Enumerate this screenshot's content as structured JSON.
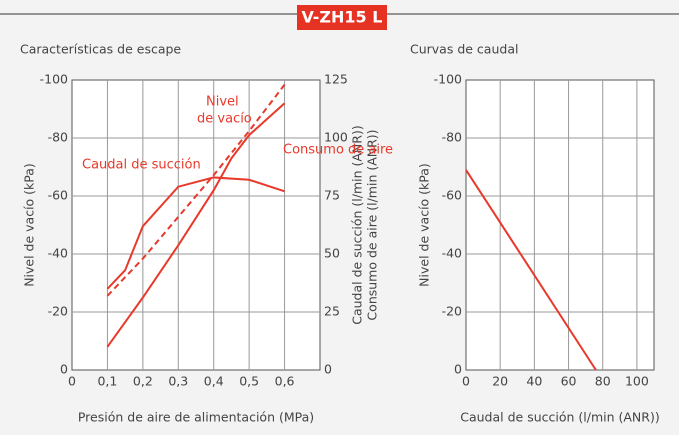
{
  "header": {
    "title": "V-ZH15 L"
  },
  "chart_data": [
    {
      "type": "line",
      "title": "Características de escape",
      "xlabel": "Presión de aire de alimentación (MPa)",
      "ylabel": "Nivel de vacío (kPa)",
      "y2label": [
        "Caudal de succión (l/min (ANR))",
        "Consumo de aire (l/min (ANR))"
      ],
      "xlim": [
        0,
        0.7
      ],
      "xticks": [
        {
          "value": 0,
          "label": "0"
        },
        {
          "value": 0.1,
          "label": "0,1"
        },
        {
          "value": 0.2,
          "label": "0,2"
        },
        {
          "value": 0.3,
          "label": "0,3"
        },
        {
          "value": 0.4,
          "label": "0,4"
        },
        {
          "value": 0.5,
          "label": "0,5"
        },
        {
          "value": 0.6,
          "label": "0,6"
        }
      ],
      "ylim": [
        0,
        -100
      ],
      "yticks": [
        0,
        -20,
        -40,
        -60,
        -80,
        -100
      ],
      "y2lim": [
        0,
        125
      ],
      "y2ticks": [
        0,
        25,
        50,
        75,
        100,
        125
      ],
      "grid": true,
      "series": [
        {
          "name": "Nivel de vacío",
          "label_lines": [
            "Nivel",
            "de vacío"
          ],
          "color": "#e8392a",
          "dashed": false,
          "x": [
            0.1,
            0.2,
            0.3,
            0.4,
            0.45,
            0.5,
            0.6
          ],
          "values": [
            -8,
            -25,
            -43,
            -62,
            -73,
            -81,
            -92
          ]
        },
        {
          "name": "Consumo de aire",
          "color": "#e8392a",
          "dashed": true,
          "axis": "y2",
          "x": [
            0.1,
            0.2,
            0.3,
            0.4,
            0.5,
            0.6
          ],
          "values": [
            32,
            48,
            66,
            84,
            103,
            123
          ]
        },
        {
          "name": "Caudal de succión",
          "color": "#e8392a",
          "dashed": false,
          "axis": "y2",
          "x": [
            0.1,
            0.15,
            0.2,
            0.3,
            0.4,
            0.5,
            0.6
          ],
          "values": [
            35,
            43,
            62,
            79,
            83,
            82,
            77
          ]
        }
      ]
    },
    {
      "type": "line",
      "title": "Curvas de caudal",
      "xlabel": "Caudal de succión (l/min (ANR))",
      "ylabel": "Nivel de vacío (kPa)",
      "xlim": [
        0,
        110
      ],
      "xticks": [
        0,
        20,
        40,
        60,
        80,
        100
      ],
      "ylim": [
        0,
        -100
      ],
      "yticks": [
        0,
        -20,
        -40,
        -60,
        -80,
        -100
      ],
      "grid": true,
      "series": [
        {
          "name": null,
          "color": "#e8392a",
          "dashed": false,
          "x": [
            0,
            76
          ],
          "values": [
            -69,
            0
          ]
        }
      ]
    }
  ]
}
